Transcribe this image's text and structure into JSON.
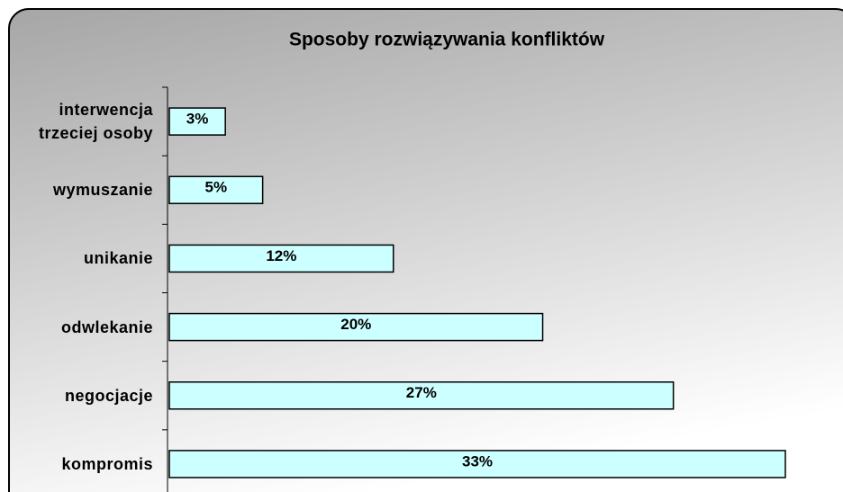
{
  "chart_data": {
    "type": "bar",
    "orientation": "horizontal",
    "title": "Sposoby rozwiązywania konfliktów",
    "categories": [
      "interwencja\ntrzeciej osoby",
      "wymuszanie",
      "unikanie",
      "odwlekanie",
      "negocjacje",
      "kompromis"
    ],
    "values": [
      3,
      5,
      12,
      20,
      27,
      33
    ],
    "value_labels": [
      "3%",
      "5%",
      "12%",
      "20%",
      "27%",
      "33%"
    ],
    "color": "#ccffff"
  }
}
